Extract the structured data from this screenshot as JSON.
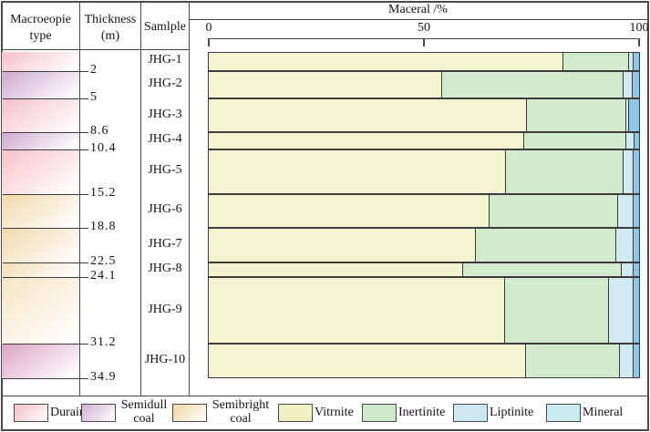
{
  "table": {
    "headers": {
      "macro_type": "Macroeopie\ntype",
      "thickness": "Thickness\n(m)",
      "sample": "Samlple"
    }
  },
  "chart_data": {
    "type": "bar",
    "orientation": "horizontal_stacked",
    "title": "Maceral /%",
    "xlabel": "Maceral /%",
    "xlim": [
      0,
      100
    ],
    "xticks": [
      0,
      50,
      100
    ],
    "grid": false,
    "samples": [
      "JHG-1",
      "JHG-2",
      "JHG-3",
      "JHG-4",
      "JHG-5",
      "JHG-6",
      "JHG-7",
      "JHG-8",
      "JHG-9",
      "JHG-10"
    ],
    "depth_boundaries": [
      0,
      2,
      5,
      8.6,
      10.4,
      15.2,
      18.8,
      22.5,
      24.1,
      31.2,
      34.9
    ],
    "depth_tick_labels": [
      "2",
      "5",
      "8.6",
      "10.4",
      "15.2",
      "18.8",
      "22.5",
      "24.1",
      "31.2",
      "34.9"
    ],
    "series": [
      {
        "name": "Vitrnite",
        "color": "#f4f4ce",
        "values": [
          82.4,
          54.2,
          73.9,
          73.3,
          69.1,
          65.3,
          62.1,
          59.1,
          68.9,
          73.7
        ]
      },
      {
        "name": "Inertinite",
        "color": "#d2ebcd",
        "values": [
          15.3,
          42.2,
          23.1,
          23.7,
          27.3,
          29.8,
          32.6,
          36.9,
          24.1,
          21.9
        ]
      },
      {
        "name": "Liptinite",
        "color": "#d2eaf2",
        "values": [
          1.1,
          2.1,
          0.7,
          1.9,
          2.3,
          3.6,
          4.0,
          2.7,
          5.7,
          3.1
        ]
      },
      {
        "name": "Mineral",
        "color": "#8ec7e7",
        "values": [
          1.2,
          1.5,
          2.3,
          1.1,
          1.3,
          1.3,
          1.3,
          1.3,
          1.3,
          1.3
        ]
      }
    ]
  },
  "strat_column": {
    "bands": [
      {
        "top_depth": 0,
        "base_depth": 2,
        "type": "Durain",
        "color": "#f6c7d0"
      },
      {
        "top_depth": 2,
        "base_depth": 5,
        "type": "Semidull coal",
        "color": "#d2b2d2"
      },
      {
        "top_depth": 5,
        "base_depth": 8.6,
        "type": "Durain",
        "color": "#f6c7d0"
      },
      {
        "top_depth": 8.6,
        "base_depth": 10.4,
        "type": "Semidull coal",
        "color": "#d2b2d2"
      },
      {
        "top_depth": 10.4,
        "base_depth": 15.2,
        "type": "Durain",
        "color": "#f8c9cf"
      },
      {
        "top_depth": 15.2,
        "base_depth": 18.8,
        "type": "Semibright coal",
        "color": "#f2dcb2"
      },
      {
        "top_depth": 18.8,
        "base_depth": 22.5,
        "type": "Semibright coal",
        "color": "#f2dcb2"
      },
      {
        "top_depth": 22.5,
        "base_depth": 24.1,
        "type": "Semibright coal",
        "color": "#f3e0bc"
      },
      {
        "top_depth": 24.1,
        "base_depth": 31.2,
        "type": "Semibright coal",
        "color": "#f6e8cb"
      },
      {
        "top_depth": 31.2,
        "base_depth": 34.9,
        "type": "Semidull coal",
        "color": "#dfadc9"
      }
    ]
  },
  "legend": {
    "items": [
      {
        "label": "Durain",
        "color": "#f6c7d0",
        "gradient": true,
        "wrap": false
      },
      {
        "label": "Semidull coal",
        "color": "#d8bcd6",
        "gradient": true,
        "wrap": true
      },
      {
        "label": "Semibright coal",
        "color": "#f2dcb2",
        "gradient": true,
        "wrap": true
      },
      {
        "label": "Vitrnite",
        "color": "#f1f1c6",
        "gradient": false,
        "wrap": false
      },
      {
        "label": "Inertinite",
        "color": "#cde9c9",
        "gradient": false,
        "wrap": false
      },
      {
        "label": "Liptinite",
        "color": "#cde8f1",
        "gradient": false,
        "wrap": false
      },
      {
        "label": "Mineral",
        "color": "#c9ecee",
        "gradient": false,
        "wrap": false
      }
    ]
  },
  "colors": {
    "border": "#4a4a4a",
    "bar_outline": "#3c3c3c",
    "text": "#151515"
  }
}
